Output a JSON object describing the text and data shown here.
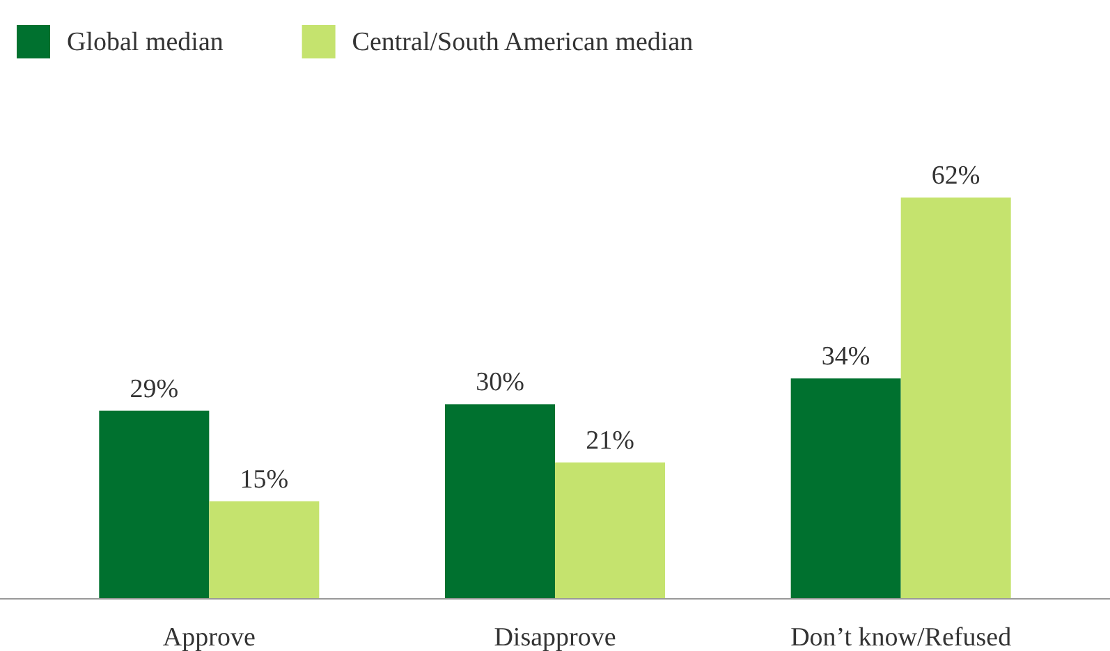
{
  "chart_data": {
    "type": "bar",
    "categories": [
      "Approve",
      "Disapprove",
      "Don’t know/Refused"
    ],
    "series": [
      {
        "name": "Global median",
        "color": "#00712f",
        "values": [
          29,
          30,
          34
        ],
        "value_labels": [
          "29%",
          "30%",
          "34%"
        ]
      },
      {
        "name": "Central/South American median",
        "color": "#c5e36e",
        "values": [
          15,
          21,
          62
        ],
        "value_labels": [
          "15%",
          "21%",
          "62%"
        ]
      }
    ],
    "legend": "top left"
  }
}
